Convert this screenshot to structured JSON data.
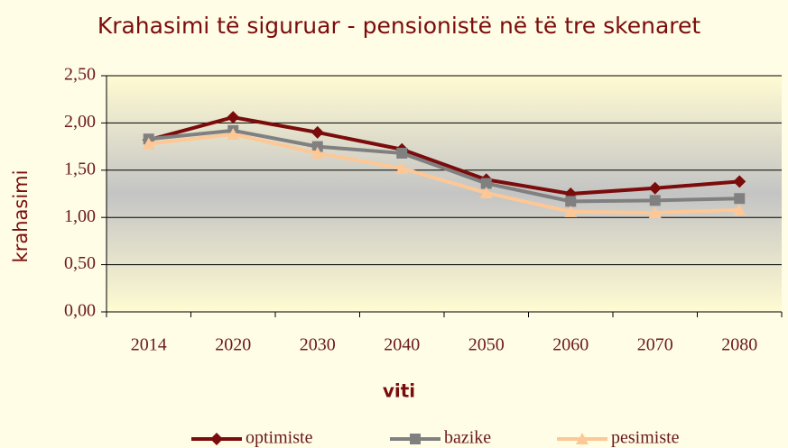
{
  "chart_data": {
    "type": "line",
    "title": "Krahasimi të siguruar - pensionistë në të tre skenaret",
    "x_label": "viti",
    "y_label": "krahasimi",
    "categories": [
      "2014",
      "2020",
      "2030",
      "2040",
      "2050",
      "2060",
      "2070",
      "2080"
    ],
    "series": [
      {
        "name": "optimiste",
        "color": "#7b0c0c",
        "marker": "diamond",
        "values": [
          1.82,
          2.06,
          1.9,
          1.72,
          1.4,
          1.25,
          1.31,
          1.38
        ]
      },
      {
        "name": "bazike",
        "color": "#808080",
        "marker": "square",
        "values": [
          1.83,
          1.92,
          1.75,
          1.68,
          1.36,
          1.17,
          1.18,
          1.2
        ]
      },
      {
        "name": "pesimiste",
        "color": "#fdc896",
        "marker": "triangle",
        "values": [
          1.78,
          1.88,
          1.68,
          1.52,
          1.26,
          1.06,
          1.05,
          1.08
        ]
      }
    ],
    "ylim": [
      0,
      2.5
    ],
    "yticks": [
      {
        "value": 0,
        "label": "0,00"
      },
      {
        "value": 0.5,
        "label": "0,50"
      },
      {
        "value": 1,
        "label": "1,00"
      },
      {
        "value": 1.5,
        "label": "1,50"
      },
      {
        "value": 2,
        "label": "2,00"
      },
      {
        "value": 2.5,
        "label": "2,50"
      }
    ],
    "grid": true,
    "legend": "bottom"
  }
}
